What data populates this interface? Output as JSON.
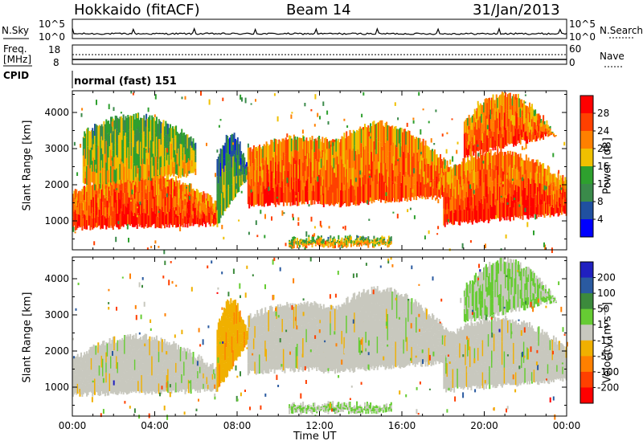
{
  "header": {
    "station": "Hokkaido (fitACF)",
    "beam": "Beam 14",
    "date": "31/Jan/2013"
  },
  "noise_panel": {
    "left_label": "N.Sky",
    "left_ticks": [
      "10^5",
      "10^0"
    ],
    "right_label": "N.Search",
    "right_ticks": [
      "10^5",
      "10^0"
    ]
  },
  "freq_panel": {
    "left_label_1": "Freq.",
    "left_label_2": "[MHz]",
    "left_ticks": [
      "18",
      "8"
    ],
    "right_label": "Nave",
    "right_ticks": [
      "60",
      "0"
    ]
  },
  "cpid_panel": {
    "label": "CPID",
    "mode": "normal (fast) 151"
  },
  "x_axis": {
    "title": "Time UT",
    "ticks": [
      "00:00",
      "04:00",
      "08:00",
      "12:00",
      "16:00",
      "20:00",
      "00:00"
    ]
  },
  "colors": {
    "power": [
      "#0000ff",
      "#2050a0",
      "#3a8a4a",
      "#2ea02e",
      "#f0c000",
      "#ff8000",
      "#ff4000",
      "#ff0000"
    ],
    "velocity": [
      "#2020c0",
      "#2a5aa0",
      "#3c8a3c",
      "#66cc33",
      "#c8c8be",
      "#f0b000",
      "#ff8000",
      "#ff4000",
      "#ff0000"
    ]
  },
  "chart_data": [
    {
      "type": "heatmap",
      "name": "power",
      "ylabel": "Slant Range [km]",
      "xlabel": "",
      "xlim": [
        0,
        24
      ],
      "ylim": [
        200,
        4600
      ],
      "yticks": [
        1000,
        2000,
        3000,
        4000
      ],
      "colorbar": {
        "label": "Power [dB]",
        "ticks": [
          "28",
          "24",
          "20",
          "16",
          "12",
          "8",
          "4"
        ],
        "range": [
          0,
          32
        ]
      },
      "echo_bands": [
        {
          "t": [
            0.0,
            7.0
          ],
          "r_low": [
            800,
            900
          ],
          "r_high": [
            1500,
            2400
          ],
          "level": 28
        },
        {
          "t": [
            0.5,
            6.0
          ],
          "r_low": [
            2000,
            2300
          ],
          "r_high": [
            3200,
            3900
          ],
          "level": 19
        },
        {
          "t": [
            7.0,
            8.6
          ],
          "r_low": [
            900,
            2300
          ],
          "r_high": [
            2300,
            3400
          ],
          "level": 14
        },
        {
          "t": [
            8.5,
            14.5
          ],
          "r_low": [
            1400,
            1600
          ],
          "r_high": [
            2800,
            3300
          ],
          "level": 27
        },
        {
          "t": [
            12.0,
            18.5
          ],
          "r_low": [
            1400,
            1700
          ],
          "r_high": [
            2400,
            3700
          ],
          "level": 26
        },
        {
          "t": [
            18.0,
            24.0
          ],
          "r_low": [
            900,
            1200
          ],
          "r_high": [
            2100,
            2900
          ],
          "level": 28
        },
        {
          "t": [
            19.0,
            23.5
          ],
          "r_low": [
            2800,
            3400
          ],
          "r_high": [
            3400,
            4500
          ],
          "level": 26
        },
        {
          "t": [
            10.5,
            15.5
          ],
          "r_low": [
            300,
            330
          ],
          "r_high": [
            500,
            520
          ],
          "level": 20
        }
      ]
    },
    {
      "type": "heatmap",
      "name": "velocity",
      "ylabel": "Slant Range [km]",
      "xlabel": "Time UT",
      "xlim": [
        0,
        24
      ],
      "ylim": [
        200,
        4600
      ],
      "yticks": [
        1000,
        2000,
        3000,
        4000
      ],
      "colorbar": {
        "label": "Velocity [m s⁻¹]",
        "ticks": [
          "200",
          "100",
          "50",
          "15",
          "-15",
          "-50",
          "-100",
          "-200"
        ],
        "range": [
          -250,
          250
        ]
      },
      "echo_bands": [
        {
          "t": [
            0.0,
            7.0
          ],
          "r_low": [
            800,
            900
          ],
          "r_high": [
            1500,
            2400
          ],
          "level": 0
        },
        {
          "t": [
            7.0,
            8.6
          ],
          "r_low": [
            900,
            2300
          ],
          "r_high": [
            2300,
            3400
          ],
          "level": -60
        },
        {
          "t": [
            8.5,
            14.5
          ],
          "r_low": [
            1400,
            1600
          ],
          "r_high": [
            2800,
            3300
          ],
          "level": 0
        },
        {
          "t": [
            12.0,
            18.5
          ],
          "r_low": [
            1400,
            1700
          ],
          "r_high": [
            2400,
            3700
          ],
          "level": 0
        },
        {
          "t": [
            18.0,
            24.0
          ],
          "r_low": [
            900,
            1200
          ],
          "r_high": [
            2100,
            2900
          ],
          "level": 0
        },
        {
          "t": [
            19.0,
            23.5
          ],
          "r_low": [
            2800,
            3400
          ],
          "r_high": [
            3400,
            4500
          ],
          "level": 30
        },
        {
          "t": [
            10.5,
            15.5
          ],
          "r_low": [
            300,
            330
          ],
          "r_high": [
            500,
            520
          ],
          "level": 30
        }
      ]
    }
  ]
}
